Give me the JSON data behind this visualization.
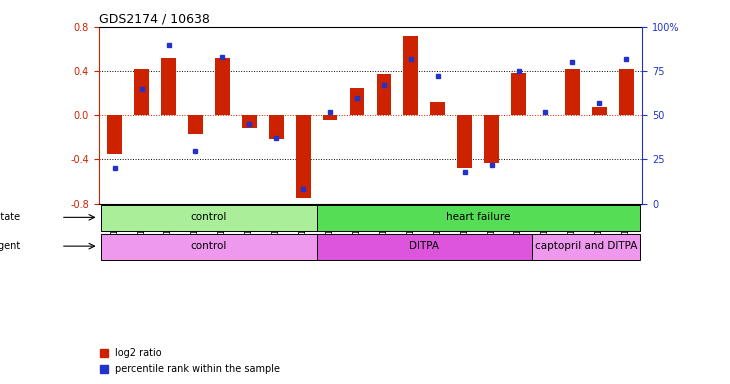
{
  "title": "GDS2174 / 10638",
  "samples": [
    "GSM111772",
    "GSM111823",
    "GSM111824",
    "GSM111825",
    "GSM111826",
    "GSM111827",
    "GSM111828",
    "GSM111829",
    "GSM111861",
    "GSM111863",
    "GSM111864",
    "GSM111865",
    "GSM111866",
    "GSM111867",
    "GSM111869",
    "GSM111870",
    "GSM112038",
    "GSM112039",
    "GSM112040",
    "GSM112041"
  ],
  "log2_ratio": [
    -0.35,
    0.42,
    0.52,
    -0.17,
    0.52,
    -0.12,
    -0.22,
    -0.75,
    -0.04,
    0.25,
    0.37,
    0.72,
    0.12,
    -0.48,
    -0.43,
    0.38,
    0.0,
    0.42,
    0.07,
    0.42
  ],
  "pct_rank": [
    20,
    65,
    90,
    30,
    83,
    45,
    37,
    8,
    52,
    60,
    67,
    82,
    72,
    18,
    22,
    75,
    52,
    80,
    57,
    82
  ],
  "ylim": [
    -0.8,
    0.8
  ],
  "yticks_left": [
    -0.8,
    -0.4,
    0.0,
    0.4,
    0.8
  ],
  "yticks_right": [
    0,
    25,
    50,
    75,
    100
  ],
  "bar_color": "#cc2200",
  "dot_color": "#2233cc",
  "disease_state": [
    {
      "label": "control",
      "start": 0,
      "end": 8,
      "color": "#aaee99"
    },
    {
      "label": "heart failure",
      "start": 8,
      "end": 20,
      "color": "#55dd55"
    }
  ],
  "agent": [
    {
      "label": "control",
      "start": 0,
      "end": 8,
      "color": "#ee99ee"
    },
    {
      "label": "DITPA",
      "start": 8,
      "end": 16,
      "color": "#dd55dd"
    },
    {
      "label": "captopril and DITPA",
      "start": 16,
      "end": 20,
      "color": "#ee99ee"
    }
  ]
}
